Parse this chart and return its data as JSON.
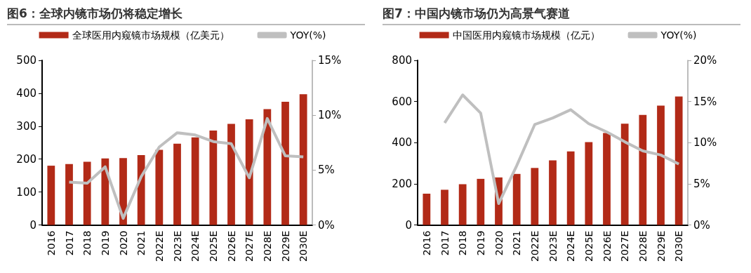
{
  "chart_data": [
    {
      "type": "bar",
      "title": "图6：全球内镜市场仍将稳定增长",
      "categories": [
        "2016",
        "2017",
        "2018",
        "2019",
        "2020",
        "2021",
        "2022E",
        "2023E",
        "2024E",
        "2025E",
        "2026E",
        "2027E",
        "2028E",
        "2029E",
        "2030E"
      ],
      "series": [
        {
          "name": "全球医用内窥镜市场规模（亿美元）",
          "color": "#b22a17",
          "values": [
            180,
            185,
            192,
            202,
            203,
            212,
            228,
            247,
            266,
            287,
            307,
            321,
            352,
            374,
            397
          ]
        },
        {
          "name": "YOY(%)",
          "type": "line",
          "axis": "y2",
          "color": "#bfbfbf",
          "values": [
            null,
            3.9,
            3.8,
            5.3,
            0.6,
            4.4,
            7.1,
            8.4,
            8.2,
            7.6,
            7.4,
            4.3,
            9.7,
            6.3,
            6.2
          ]
        }
      ],
      "ylim": [
        0,
        500
      ],
      "yticks": [
        0,
        100,
        200,
        300,
        400,
        500
      ],
      "y2lim": [
        0,
        15
      ],
      "y2ticks": [
        {
          "value": 0,
          "label": "0%"
        },
        {
          "value": 5,
          "label": "5%"
        },
        {
          "value": 10,
          "label": "10%"
        },
        {
          "value": 15,
          "label": "15%"
        }
      ],
      "grid": false,
      "legend": "top",
      "marker": "none"
    },
    {
      "type": "bar",
      "title": "图7：中国内镜市场仍为高景气赛道",
      "categories": [
        "2016",
        "2017",
        "2018",
        "2019",
        "2020",
        "2021",
        "2022E",
        "2023E",
        "2024E",
        "2025E",
        "2026E",
        "2027E",
        "2028E",
        "2029E",
        "2030E"
      ],
      "series": [
        {
          "name": "中国医用内窥镜市场规模（亿元）",
          "color": "#b22a17",
          "values": [
            152,
            171,
            198,
            224,
            231,
            248,
            277,
            314,
            357,
            403,
            447,
            492,
            535,
            580,
            624
          ]
        },
        {
          "name": "YOY(%)",
          "type": "line",
          "axis": "y2",
          "color": "#bfbfbf",
          "values": [
            null,
            12.4,
            15.8,
            13.6,
            2.6,
            7.2,
            12.2,
            13.0,
            14.0,
            12.3,
            11.3,
            10.1,
            9.0,
            8.5,
            7.4
          ]
        }
      ],
      "ylim": [
        0,
        800
      ],
      "yticks": [
        0,
        200,
        400,
        600,
        800
      ],
      "y2lim": [
        0,
        20
      ],
      "y2ticks": [
        {
          "value": 0,
          "label": "0%"
        },
        {
          "value": 5,
          "label": "5%"
        },
        {
          "value": 10,
          "label": "10%"
        },
        {
          "value": 15,
          "label": "15%"
        },
        {
          "value": 20,
          "label": "20%"
        }
      ],
      "grid": false,
      "legend": "top",
      "marker": "none"
    }
  ]
}
